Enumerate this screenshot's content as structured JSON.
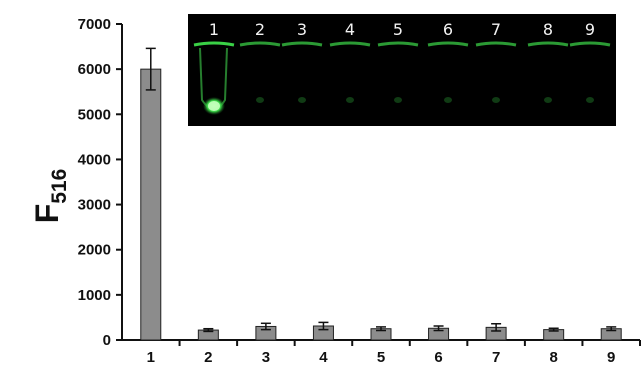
{
  "chart_data": {
    "type": "bar",
    "categories": [
      "1",
      "2",
      "3",
      "4",
      "5",
      "6",
      "7",
      "8",
      "9"
    ],
    "values": [
      6000,
      220,
      300,
      310,
      250,
      260,
      280,
      230,
      250
    ],
    "errors": [
      460,
      30,
      70,
      80,
      40,
      50,
      80,
      30,
      40
    ],
    "ylabel": "F",
    "ylabel_subscript": "516",
    "ylim": [
      0,
      7000
    ],
    "yticks": [
      "0",
      "1000",
      "2000",
      "3000",
      "4000",
      "5000",
      "6000",
      "7000"
    ],
    "bar_color": "#8c8c8c",
    "grid": false
  },
  "inset": {
    "background": "#000000",
    "glow_color": "#3ddc4a",
    "tube_labels": [
      "1",
      "2",
      "3",
      "4",
      "5",
      "6",
      "7",
      "8",
      "9"
    ],
    "bright_tube": "1"
  }
}
